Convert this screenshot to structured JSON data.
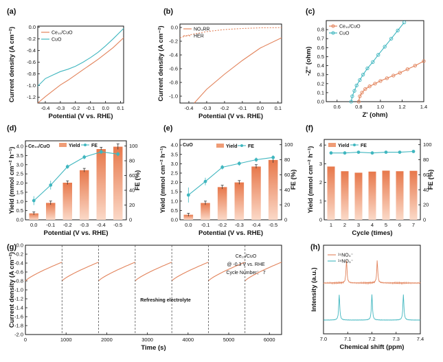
{
  "colors": {
    "orange": "#e2825a",
    "orangeFill": "#ef9c76",
    "cyan": "#3fb6bf",
    "dashed": "#555555"
  },
  "chart_data": [
    {
      "panel": "(a)",
      "type": "line",
      "xlabel": "Potential (V vs. RHE)",
      "ylabel": "Current density (A cm⁻²)",
      "xlim": [
        -0.45,
        0.12
      ],
      "ylim": [
        -1.3,
        0.02
      ],
      "xticks": [
        "-0.4",
        "-0.3",
        "-0.2",
        "-0.1",
        "0.0",
        "0.1"
      ],
      "yticks": [
        "-1.2",
        "-1.0",
        "-0.8",
        "-0.6",
        "-0.4",
        "-0.2",
        "0.0"
      ],
      "series": [
        {
          "name": "CuO",
          "color": "cyan",
          "x": [
            -0.45,
            -0.4,
            -0.35,
            -0.3,
            -0.25,
            -0.2,
            -0.15,
            -0.1,
            -0.05,
            0.0,
            0.05,
            0.12
          ],
          "y": [
            -1.01,
            -0.88,
            -0.82,
            -0.76,
            -0.72,
            -0.67,
            -0.6,
            -0.52,
            -0.43,
            -0.32,
            -0.2,
            -0.02
          ]
        },
        {
          "name": "Ce₁₀/CuO",
          "color": "orange",
          "x": [
            -0.45,
            -0.4,
            -0.35,
            -0.3,
            -0.25,
            -0.2,
            -0.15,
            -0.1,
            -0.05,
            0.0,
            0.05,
            0.12
          ],
          "y": [
            -1.3,
            -1.19,
            -1.09,
            -0.99,
            -0.91,
            -0.82,
            -0.73,
            -0.64,
            -0.55,
            -0.45,
            -0.35,
            -0.18
          ]
        }
      ]
    },
    {
      "panel": "(b)",
      "type": "line",
      "xlabel": "Potential (V vs. RHE)",
      "ylabel": "Current density (A cm⁻²)",
      "xlim": [
        -0.45,
        0.12
      ],
      "ylim": [
        -1.1,
        0.05
      ],
      "xticks": [
        "-0.4",
        "-0.3",
        "-0.2",
        "-0.1",
        "0.0",
        "0.1"
      ],
      "yticks": [
        "-1.0",
        "-0.8",
        "-0.6",
        "-0.4",
        "-0.2",
        "0.0"
      ],
      "series": [
        {
          "name": "NO₃RR",
          "color": "orange",
          "x": [
            -0.37,
            -0.3,
            -0.2,
            -0.1,
            0.0,
            0.12
          ],
          "y": [
            -1.1,
            -0.9,
            -0.68,
            -0.48,
            -0.3,
            -0.15
          ]
        },
        {
          "name": "HER",
          "color": "orange",
          "dashed": true,
          "x": [
            -0.45,
            -0.4,
            -0.3,
            -0.2,
            -0.1,
            0.0,
            0.12
          ],
          "y": [
            -0.15,
            -0.11,
            -0.06,
            -0.03,
            -0.015,
            -0.005,
            -0.002
          ]
        }
      ]
    },
    {
      "panel": "(c)",
      "type": "line",
      "xlabel": "Z' (ohm)",
      "ylabel": "-Z'' (ohm)",
      "xlim": [
        0.5,
        1.4
      ],
      "ylim": [
        0,
        0.9
      ],
      "xticks": [
        "0.6",
        "0.8",
        "1.0",
        "1.2",
        "1.4"
      ],
      "yticks": [
        "0.0",
        "0.1",
        "0.2",
        "0.3",
        "0.4",
        "0.5",
        "0.6",
        "0.7",
        "0.8"
      ],
      "series": [
        {
          "name": "Ce₁₀/CuO",
          "color": "orange",
          "x": [
            0.8,
            0.81,
            0.83,
            0.86,
            0.9,
            0.95,
            1.0,
            1.06,
            1.12,
            1.18,
            1.25,
            1.32,
            1.4
          ],
          "y": [
            0.0,
            0.06,
            0.1,
            0.14,
            0.17,
            0.2,
            0.23,
            0.26,
            0.29,
            0.32,
            0.36,
            0.4,
            0.45
          ]
        },
        {
          "name": "CuO",
          "color": "cyan",
          "x": [
            0.73,
            0.74,
            0.76,
            0.78,
            0.81,
            0.84,
            0.88,
            0.93,
            0.98,
            1.04,
            1.1,
            1.16,
            1.22
          ],
          "y": [
            0.0,
            0.06,
            0.12,
            0.18,
            0.24,
            0.3,
            0.37,
            0.44,
            0.52,
            0.61,
            0.7,
            0.79,
            0.88
          ]
        }
      ]
    },
    {
      "panel": "(d)",
      "type": "bar+line",
      "label": "Ce₁₀/CuO",
      "xlabel": "Potential (V vs. RHE)",
      "ylabel": "Yield (mmol cm⁻² h⁻¹)",
      "y2label": "FE (%)",
      "categories": [
        "0.0",
        "-0.1",
        "-0.2",
        "-0.3",
        "-0.4",
        "-0.5"
      ],
      "ylim": [
        0,
        4.3
      ],
      "y2lim": [
        0,
        107
      ],
      "yticks": [
        "0.0",
        "0.5",
        "1.0",
        "1.5",
        "2.0",
        "2.5",
        "3.0",
        "3.5",
        "4.0"
      ],
      "y2ticks": [
        "0",
        "20",
        "40",
        "60",
        "80",
        "100"
      ],
      "series": [
        {
          "name": "Yield",
          "type": "bar",
          "values": [
            0.35,
            0.92,
            2.02,
            2.7,
            3.85,
            3.98
          ],
          "err": [
            0.08,
            0.1,
            0.1,
            0.1,
            0.1,
            0.15
          ]
        },
        {
          "name": "FE",
          "type": "line",
          "values": [
            26,
            47,
            72,
            85,
            92,
            89
          ],
          "err": [
            6,
            6,
            3,
            3,
            3,
            3
          ]
        }
      ]
    },
    {
      "panel": "(e)",
      "type": "bar+line",
      "label": "CuO",
      "xlabel": "Potential (V vs. RHE)",
      "ylabel": "Yield (mmol cm⁻² h⁻¹)",
      "y2label": "FE (%)",
      "categories": [
        "0.0",
        "-0.1",
        "-0.2",
        "-0.3",
        "-0.4",
        "-0.5"
      ],
      "ylim": [
        0,
        4.3
      ],
      "y2lim": [
        0,
        107
      ],
      "yticks": [
        "0.0",
        "0.5",
        "1.0",
        "1.5",
        "2.0",
        "2.5",
        "3.0",
        "3.5",
        "4.0"
      ],
      "y2ticks": [
        "0",
        "20",
        "40",
        "60",
        "80",
        "100"
      ],
      "series": [
        {
          "name": "Yield",
          "type": "bar",
          "values": [
            0.27,
            0.9,
            1.75,
            2.0,
            2.85,
            3.2
          ],
          "err": [
            0.08,
            0.1,
            0.1,
            0.1,
            0.1,
            0.15
          ]
        },
        {
          "name": "FE",
          "type": "line",
          "values": [
            33,
            51,
            70,
            75,
            80,
            83
          ],
          "err": [
            10,
            5,
            3,
            3,
            3,
            3
          ]
        }
      ]
    },
    {
      "panel": "(f)",
      "type": "bar+line",
      "xlabel": "Cycle (times)",
      "ylabel": "Yield (mmol cm⁻² h⁻¹)",
      "y2label": "FE (%)",
      "categories": [
        "1",
        "2",
        "3",
        "4",
        "5",
        "6",
        "7"
      ],
      "ylim": [
        0,
        4.3
      ],
      "y2lim": [
        0,
        107
      ],
      "yticks": [
        "0",
        "1",
        "2",
        "3",
        "4"
      ],
      "y2ticks": [
        "0",
        "20",
        "40",
        "60",
        "80",
        "100"
      ],
      "series": [
        {
          "name": "Yield",
          "type": "bar",
          "values": [
            2.85,
            2.6,
            2.52,
            2.58,
            2.63,
            2.6,
            2.62
          ]
        },
        {
          "name": "FE",
          "type": "line",
          "values": [
            89,
            89,
            90,
            89,
            90,
            90,
            91
          ]
        }
      ]
    },
    {
      "panel": "(g)",
      "type": "line",
      "xlabel": "Time (s)",
      "ylabel": "Current density (A cm⁻²)",
      "xlim": [
        0,
        6300
      ],
      "ylim": [
        -2.0,
        0.0
      ],
      "xticks": [
        "0",
        "1000",
        "2000",
        "3000",
        "4000",
        "5000",
        "6000"
      ],
      "yticks": [
        "-2.0",
        "-1.8",
        "-1.6",
        "-1.4",
        "-1.2",
        "-1.0",
        "-0.8",
        "-0.6",
        "-0.4",
        "-0.2",
        "0.0"
      ],
      "cycle_length_s": 900,
      "cycles": 7,
      "segment_start": -0.8,
      "segment_end": -0.38,
      "annotations": [
        "Ce₁₀/CuO",
        "@ -0.3 V vs. RHE",
        "Cycle Number： 7",
        "Refreshing electrolyte"
      ]
    },
    {
      "panel": "(h)",
      "type": "line",
      "xlabel": "Chemical shift (ppm)",
      "ylabel": "Intensity (a.u.)",
      "xlim": [
        7.0,
        7.4
      ],
      "xticks": [
        "7.0",
        "7.1",
        "7.2",
        "7.3",
        "7.4"
      ],
      "series": [
        {
          "name": "¹⁵NO₃⁻",
          "color": "orange",
          "peaks": [
            7.095,
            7.222
          ],
          "heights": [
            0.55,
            0.55
          ]
        },
        {
          "name": "¹⁴NO₃⁻",
          "color": "cyan",
          "peaks": [
            7.065,
            7.2,
            7.33
          ],
          "heights": [
            0.62,
            0.62,
            0.62
          ]
        }
      ]
    }
  ]
}
